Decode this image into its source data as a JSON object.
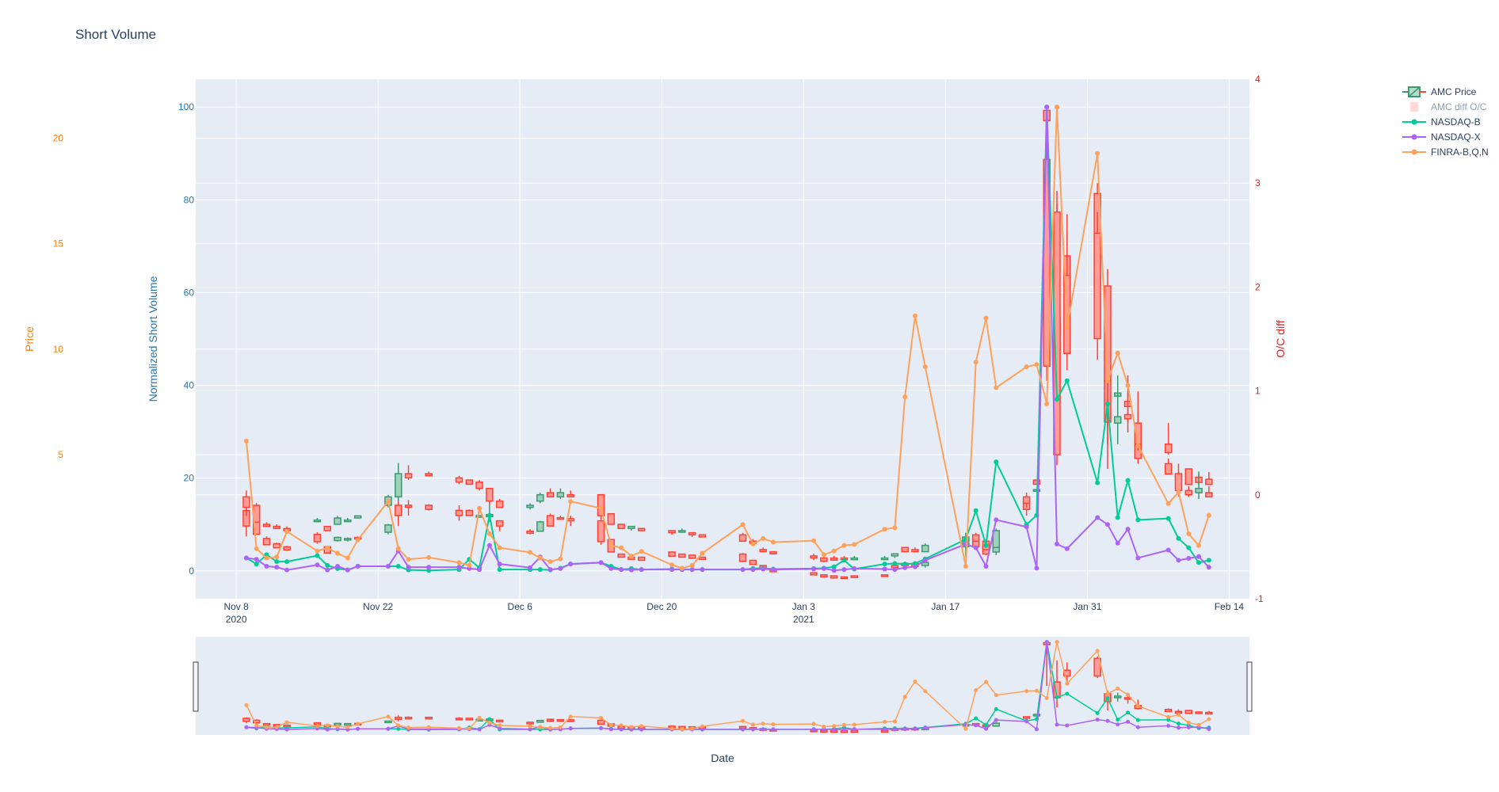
{
  "chart_data": {
    "type": "line",
    "title": "Short Volume",
    "xlabel": "Date",
    "x_range": [
      "2020-11-04",
      "2021-02-16"
    ],
    "x_ticks": [
      {
        "date": "2020-11-08",
        "label": "Nov 8",
        "sub": "2020"
      },
      {
        "date": "2020-11-22",
        "label": "Nov 22",
        "sub": ""
      },
      {
        "date": "2020-12-06",
        "label": "Dec 6",
        "sub": ""
      },
      {
        "date": "2020-12-20",
        "label": "Dec 20",
        "sub": ""
      },
      {
        "date": "2021-01-03",
        "label": "Jan 3",
        "sub": "2021"
      },
      {
        "date": "2021-01-17",
        "label": "Jan 17",
        "sub": ""
      },
      {
        "date": "2021-01-31",
        "label": "Jan 31",
        "sub": ""
      },
      {
        "date": "2021-02-14",
        "label": "Feb 14",
        "sub": ""
      }
    ],
    "axes": {
      "price": {
        "label": "Price",
        "range": [
          -1.83,
          22.8
        ],
        "ticks": [
          5,
          10,
          15,
          20
        ],
        "color": "#ff7f0e"
      },
      "volume": {
        "label": "Normalized Short Volume",
        "range": [
          -6,
          106
        ],
        "ticks": [
          0,
          20,
          40,
          60,
          80,
          100
        ],
        "color": "#1f77b4"
      },
      "diff": {
        "label": "O/C diff",
        "range": [
          -1,
          4
        ],
        "ticks": [
          -1,
          0,
          1,
          2,
          3,
          4
        ],
        "color": "#d62728"
      }
    },
    "grid": true,
    "legend_position": "top-right",
    "legend": [
      "AMC Price",
      "AMC diff O/C",
      "NASDAQ-B",
      "NASDAQ-X",
      "FINRA-B,Q,N"
    ],
    "colors": {
      "increasing": "#3d9970",
      "decreasing": "#ff4136",
      "nasdaq_b": "#00cc96",
      "nasdaq_x": "#ab63fa",
      "finra": "#ffa15a",
      "plot_bg": "#e5ecf6",
      "text": "#2a3f5f"
    },
    "dates": [
      "2020-11-09",
      "2020-11-10",
      "2020-11-11",
      "2020-11-12",
      "2020-11-13",
      "2020-11-16",
      "2020-11-17",
      "2020-11-18",
      "2020-11-19",
      "2020-11-20",
      "2020-11-23",
      "2020-11-24",
      "2020-11-25",
      "2020-11-27",
      "2020-11-30",
      "2020-12-01",
      "2020-12-02",
      "2020-12-03",
      "2020-12-04",
      "2020-12-07",
      "2020-12-08",
      "2020-12-09",
      "2020-12-10",
      "2020-12-11",
      "2020-12-14",
      "2020-12-15",
      "2020-12-16",
      "2020-12-17",
      "2020-12-18",
      "2020-12-21",
      "2020-12-22",
      "2020-12-23",
      "2020-12-24",
      "2020-12-28",
      "2020-12-29",
      "2020-12-30",
      "2020-12-31",
      "2021-01-04",
      "2021-01-05",
      "2021-01-06",
      "2021-01-07",
      "2021-01-08",
      "2021-01-11",
      "2021-01-12",
      "2021-01-13",
      "2021-01-14",
      "2021-01-15",
      "2021-01-19",
      "2021-01-20",
      "2021-01-21",
      "2021-01-22",
      "2021-01-25",
      "2021-01-26",
      "2021-01-27",
      "2021-01-28",
      "2021-01-29",
      "2021-02-01",
      "2021-02-02",
      "2021-02-03",
      "2021-02-04",
      "2021-02-05",
      "2021-02-08",
      "2021-02-09",
      "2021-02-10",
      "2021-02-11",
      "2021-02-12"
    ],
    "price_ohlc": [
      [
        3.0,
        3.3,
        2.1,
        2.5
      ],
      [
        2.6,
        2.7,
        1.8,
        1.8
      ],
      [
        1.7,
        1.8,
        1.6,
        1.6
      ],
      [
        1.6,
        1.7,
        1.5,
        1.5
      ],
      [
        1.5,
        1.6,
        1.4,
        1.4
      ],
      [
        1.9,
        2.0,
        1.8,
        1.9
      ],
      [
        1.6,
        1.6,
        1.4,
        1.4
      ],
      [
        1.7,
        2.1,
        1.7,
        2.0
      ],
      [
        1.9,
        2.0,
        1.8,
        1.9
      ],
      [
        2.0,
        2.1,
        2.0,
        2.1
      ],
      [
        2.6,
        3.1,
        2.5,
        3.0
      ],
      [
        3.0,
        4.6,
        2.8,
        4.1
      ],
      [
        4.1,
        4.5,
        3.8,
        3.9
      ],
      [
        4.1,
        4.2,
        4.0,
        4.0
      ],
      [
        3.9,
        4.0,
        3.6,
        3.7
      ],
      [
        3.8,
        3.8,
        3.6,
        3.6
      ],
      [
        3.7,
        3.8,
        3.3,
        3.4
      ],
      [
        3.4,
        3.4,
        2.6,
        2.8
      ],
      [
        2.8,
        2.9,
        2.5,
        2.5
      ],
      [
        2.5,
        2.7,
        2.4,
        2.6
      ],
      [
        2.8,
        3.2,
        2.7,
        3.1
      ],
      [
        3.2,
        3.4,
        3.0,
        3.0
      ],
      [
        3.0,
        3.4,
        2.9,
        3.2
      ],
      [
        3.1,
        3.3,
        3.0,
        3.0
      ],
      [
        3.1,
        3.1,
        1.9,
        2.1
      ],
      [
        2.2,
        2.2,
        1.7,
        1.7
      ],
      [
        1.7,
        1.7,
        1.5,
        1.5
      ],
      [
        1.5,
        1.6,
        1.4,
        1.6
      ],
      [
        1.5,
        1.5,
        1.4,
        1.4
      ],
      [
        1.4,
        1.4,
        1.2,
        1.3
      ],
      [
        1.4,
        1.5,
        1.3,
        1.4
      ],
      [
        1.3,
        1.3,
        1.1,
        1.2
      ],
      [
        1.2,
        1.2,
        1.1,
        1.1
      ],
      [
        1.2,
        1.3,
        1.0,
        0.9
      ],
      [
        0.9,
        1.0,
        0.8,
        0.8
      ],
      [
        0.5,
        0.6,
        0.4,
        0.4
      ],
      [
        0.4,
        0.4,
        0.3,
        0.3
      ],
      [
        0.2,
        0.3,
        0.0,
        0.1
      ],
      [
        0.1,
        0.2,
        -0.1,
        -0.05
      ],
      [
        0.1,
        0.2,
        0.0,
        0.0
      ],
      [
        0.1,
        0.2,
        0.0,
        0.05
      ],
      [
        0.1,
        0.2,
        0.05,
        0.1
      ],
      [
        0.1,
        0.2,
        0.05,
        0.1
      ],
      [
        0.2,
        0.3,
        0.1,
        0.3
      ],
      [
        0.6,
        0.6,
        0.4,
        0.4
      ],
      [
        0.5,
        0.6,
        0.4,
        0.4
      ],
      [
        0.4,
        0.8,
        0.4,
        0.7
      ],
      [
        0.9,
        1.3,
        0.5,
        1.1
      ],
      [
        1.2,
        1.3,
        0.9,
        0.9
      ],
      [
        0.9,
        1.0,
        0.5,
        0.5
      ],
      [
        0.6,
        1.5,
        0.6,
        1.4
      ],
      [
        3.0,
        3.2,
        2.5,
        2.7
      ],
      [
        3.8,
        3.8,
        3.6,
        3.6
      ],
      [
        19.0,
        19.9,
        8.5,
        9.2
      ],
      [
        16.5,
        17.5,
        4.5,
        5.0
      ],
      [
        13.5,
        15.5,
        9.0,
        9.8
      ],
      [
        15.5,
        16.5,
        9.5,
        10.5
      ],
      [
        13.0,
        13.8,
        5.5,
        8.5
      ],
      [
        6.5,
        8.5,
        5.5,
        6.8
      ],
      [
        6.9,
        8.0,
        6.5,
        6.7
      ],
      [
        6.5,
        8.0,
        5.2,
        5.5
      ],
      [
        5.5,
        6.5,
        5.0,
        5.1
      ],
      [
        4.1,
        4.2,
        3.0,
        3.3
      ],
      [
        3.3,
        3.5,
        3.0,
        3.1
      ],
      [
        3.2,
        4.2,
        2.9,
        3.4
      ],
      [
        3.2,
        3.5,
        3.0,
        3.0
      ]
    ],
    "diff_ohlc": [
      [
        -0.15,
        -0.1,
        -0.4,
        -0.3
      ],
      [
        -0.25,
        -0.2,
        -0.38,
        -0.38
      ],
      [
        -0.42,
        -0.4,
        -0.48,
        -0.48
      ],
      [
        -0.47,
        -0.46,
        -0.51,
        -0.51
      ],
      [
        -0.5,
        -0.49,
        -0.54,
        -0.53
      ],
      [
        -0.38,
        -0.36,
        -0.47,
        -0.45
      ],
      [
        -0.5,
        -0.49,
        -0.56,
        -0.56
      ],
      [
        -0.44,
        -0.4,
        -0.45,
        -0.41
      ],
      [
        -0.43,
        -0.41,
        -0.45,
        -0.42
      ],
      [
        -0.41,
        -0.4,
        -0.44,
        -0.42
      ],
      [
        -0.36,
        -0.28,
        -0.38,
        -0.29
      ],
      [
        -0.1,
        0.0,
        -0.3,
        -0.2
      ],
      [
        -0.1,
        -0.05,
        -0.2,
        -0.12
      ],
      [
        -0.1,
        -0.09,
        -0.15,
        -0.14
      ],
      [
        -0.15,
        -0.1,
        -0.25,
        -0.2
      ],
      [
        -0.15,
        -0.14,
        -0.2,
        -0.2
      ],
      [
        -0.2,
        -0.2,
        -0.2,
        -0.2
      ],
      [
        -0.21,
        -0.1,
        -0.26,
        -0.19
      ],
      [
        -0.25,
        -0.25,
        -0.35,
        -0.3
      ],
      [
        -0.35,
        -0.33,
        -0.38,
        -0.37
      ],
      [
        -0.35,
        -0.25,
        -0.28,
        -0.26
      ],
      [
        -0.2,
        -0.18,
        -0.3,
        -0.3
      ],
      [
        -0.22,
        -0.2,
        -0.24,
        -0.23
      ],
      [
        -0.23,
        -0.2,
        -0.3,
        -0.25
      ],
      [
        -0.25,
        -0.25,
        -0.48,
        -0.45
      ],
      [
        -0.43,
        -0.43,
        -0.55,
        -0.55
      ],
      [
        -0.57,
        -0.57,
        -0.6,
        -0.6
      ],
      [
        -0.6,
        -0.58,
        -0.62,
        -0.62
      ],
      [
        -0.6,
        -0.6,
        -0.63,
        -0.63
      ],
      [
        -0.55,
        -0.55,
        -0.59,
        -0.59
      ],
      [
        -0.57,
        -0.57,
        -0.6,
        -0.6
      ],
      [
        -0.58,
        -0.58,
        -0.61,
        -0.61
      ],
      [
        -0.6,
        -0.6,
        -0.62,
        -0.62
      ],
      [
        -0.57,
        -0.56,
        -0.64,
        -0.64
      ],
      [
        -0.63,
        -0.63,
        -0.67,
        -0.67
      ],
      [
        -0.68,
        -0.68,
        -0.71,
        -0.71
      ],
      [
        -0.72,
        -0.72,
        -0.74,
        -0.74
      ],
      [
        -0.75,
        -0.75,
        -0.77,
        -0.77
      ],
      [
        -0.77,
        -0.77,
        -0.79,
        -0.79
      ],
      [
        -0.78,
        -0.78,
        -0.8,
        -0.8
      ],
      [
        -0.79,
        -0.79,
        -0.8,
        -0.8
      ],
      [
        -0.78,
        -0.78,
        -0.79,
        -0.79
      ],
      [
        -0.77,
        -0.77,
        -0.78,
        -0.78
      ],
      [
        -0.68,
        -0.68,
        -0.7,
        -0.7
      ],
      [
        -0.66,
        -0.66,
        -0.68,
        -0.68
      ],
      [
        -0.66,
        -0.66,
        -0.69,
        -0.69
      ],
      [
        -0.68,
        -0.64,
        -0.7,
        -0.65
      ],
      [
        -0.5,
        -0.44,
        -0.6,
        -0.46
      ],
      [
        -0.42,
        -0.4,
        -0.52,
        -0.5
      ],
      [
        -0.49,
        -0.48,
        -0.58,
        -0.57
      ],
      [
        -0.55,
        -0.35,
        -0.58,
        -0.4
      ],
      [
        -0.07,
        -0.05,
        -0.2,
        -0.14
      ],
      [
        0.05,
        0.05,
        0.05,
        0.05
      ],
      [
        3.7,
        3.7,
        1.5,
        3.6
      ],
      [
        1.7,
        2.8,
        0.4,
        0.9
      ],
      [
        2.3,
        2.7,
        1.6,
        2.0
      ],
      [
        2.9,
        3.0,
        1.9,
        2.0
      ],
      [
        1.1,
        1.25,
        0.25,
        0.7
      ],
      [
        0.95,
        1.15,
        0.7,
        0.98
      ],
      [
        0.9,
        1.15,
        0.6,
        0.85
      ],
      [
        0.5,
        0.8,
        0.3,
        0.35
      ],
      [
        0.3,
        0.35,
        0.2,
        0.2
      ],
      [
        0.2,
        0.3,
        0.0,
        0.15
      ],
      [
        0.25,
        0.25,
        0.1,
        0.1
      ],
      [
        0.17,
        0.2,
        0.1,
        0.12
      ],
      [
        0.15,
        0.22,
        0.1,
        0.1
      ]
    ],
    "series": [
      {
        "name": "NASDAQ-B",
        "values": [
          2.8,
          1.5,
          3.5,
          2.0,
          2.0,
          3.3,
          1.2,
          0.5,
          0.2,
          1.0,
          1.0,
          1.0,
          0.2,
          0.1,
          0.3,
          2.5,
          0.7,
          12.0,
          0.3,
          0.3,
          0.3,
          0.2,
          0.6,
          1.5,
          1.8,
          1.0,
          0.3,
          0.5,
          0.3,
          0.4,
          0.3,
          0.3,
          0.3,
          0.3,
          0.5,
          0.6,
          0.4,
          0.5,
          0.6,
          0.9,
          2.3,
          0.4,
          1.5,
          1.6,
          1.5,
          1.6,
          2.6,
          6.8,
          13.0,
          5.5,
          23.5,
          10.0,
          12.0,
          100.0,
          37.0,
          41.0,
          19.0,
          36.0,
          11.5,
          19.5,
          11.0,
          11.3,
          7.0,
          5.0,
          1.8,
          2.3
        ]
      },
      {
        "name": "NASDAQ-X",
        "values": [
          2.8,
          2.5,
          1.0,
          0.8,
          0.2,
          1.3,
          0.2,
          1.0,
          0.2,
          1.0,
          1.0,
          4.3,
          0.8,
          0.8,
          0.8,
          0.5,
          0.3,
          5.5,
          1.5,
          0.7,
          3.0,
          0.3,
          0.5,
          1.5,
          1.8,
          0.5,
          0.3,
          0.2,
          0.3,
          0.3,
          0.3,
          0.3,
          0.3,
          0.3,
          0.3,
          0.4,
          0.3,
          0.4,
          0.5,
          0.1,
          0.3,
          0.5,
          0.4,
          0.3,
          0.7,
          0.9,
          2.3,
          5.8,
          5.0,
          1.0,
          11.0,
          9.5,
          0.6,
          100.0,
          5.8,
          4.8,
          11.5,
          10.0,
          6.0,
          9.0,
          2.8,
          4.5,
          2.3,
          2.7,
          3.1,
          0.8
        ]
      },
      {
        "name": "FINRA-B,Q,N",
        "values": [
          28.0,
          4.8,
          2.8,
          3.0,
          8.5,
          4.3,
          5.0,
          3.8,
          2.8,
          6.7,
          15.0,
          4.8,
          2.5,
          2.9,
          1.8,
          1.2,
          13.5,
          8.0,
          5.0,
          4.0,
          2.8,
          2.0,
          2.6,
          15.0,
          13.5,
          5.5,
          5.0,
          3.2,
          4.2,
          1.3,
          0.6,
          1.2,
          3.8,
          10.0,
          5.8,
          7.0,
          6.2,
          6.5,
          3.5,
          4.3,
          5.5,
          5.7,
          9.0,
          9.3,
          37.5,
          55.0,
          44.0,
          1.0,
          45.0,
          54.5,
          39.5,
          44.0,
          44.5,
          36.0,
          100.0,
          52.5,
          90.0,
          41.0,
          47.0,
          40.0,
          27.0,
          14.5,
          17.0,
          8.0,
          5.5,
          12.0
        ]
      }
    ]
  }
}
